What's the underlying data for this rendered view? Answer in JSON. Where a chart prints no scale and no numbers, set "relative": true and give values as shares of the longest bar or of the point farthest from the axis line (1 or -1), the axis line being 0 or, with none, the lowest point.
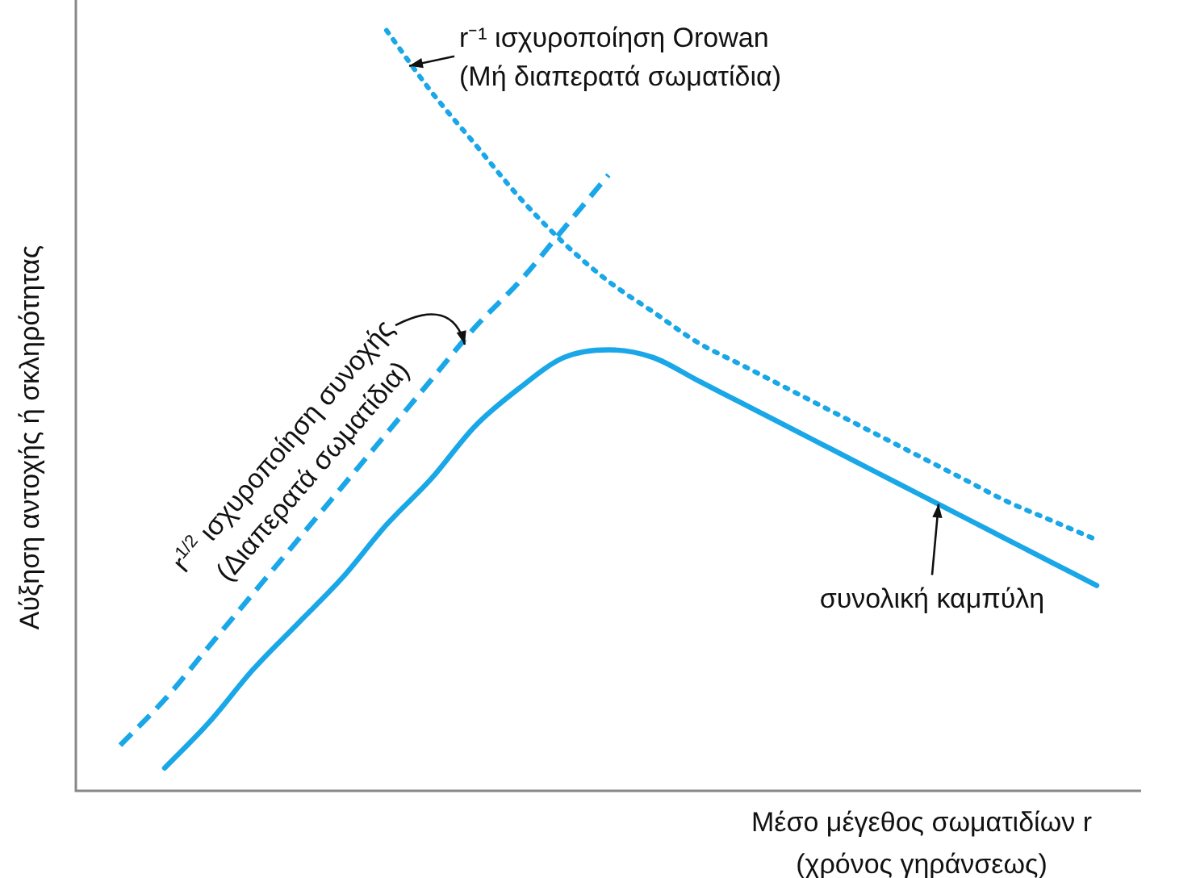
{
  "chart_data": {
    "type": "line",
    "relative": true,
    "legend": false,
    "marker": "none",
    "xlabel": "Μέσο μέγεθος σωματιδίων r\n(χρόνος γηράνσεως)",
    "ylabel": "Αύξηση αντοχής ή σκληρότητας",
    "categories": [
      null,
      null,
      null,
      null,
      null,
      null,
      null,
      null,
      null,
      null,
      null,
      null,
      null,
      null,
      null,
      null,
      null,
      null,
      null,
      null,
      null,
      null,
      null,
      null,
      null
    ],
    "series": [
      {
        "name": "r⁻¹ ισχυροποίηση Orowan\n(Μή διαπερατά σωματίδια)",
        "color": "#1aa7e8",
        "line_style": "dotted",
        "values": [
          null,
          null,
          null,
          null,
          null,
          null,
          null,
          1.0,
          0.92,
          0.85,
          0.78,
          0.72,
          0.67,
          0.63,
          0.59,
          0.56,
          0.53,
          0.5,
          0.47,
          0.44,
          0.41,
          0.38,
          0.355,
          0.33,
          null
        ]
      },
      {
        "name": "r$^{1/2}$ ισχυροποίηση συνοχής\n(Διαπερατά σωματίδια)",
        "color": "#1aa7e8",
        "line_style": "dashed",
        "values": [
          null,
          0.06,
          0.12,
          0.19,
          0.26,
          0.33,
          0.4,
          0.47,
          0.54,
          0.61,
          0.67,
          0.74,
          0.81,
          null,
          null,
          null,
          null,
          null,
          null,
          null,
          null,
          null,
          null,
          null,
          null
        ]
      },
      {
        "name": "συνολική καμπύλη",
        "color": "#1aa7e8",
        "line_style": "solid",
        "values": [
          null,
          null,
          0.03,
          0.09,
          0.16,
          0.22,
          0.28,
          0.35,
          0.41,
          0.48,
          0.53,
          0.57,
          0.58,
          0.57,
          0.54,
          0.51,
          0.48,
          0.45,
          0.42,
          0.39,
          0.36,
          0.33,
          0.3,
          0.27,
          null
        ]
      }
    ]
  }
}
